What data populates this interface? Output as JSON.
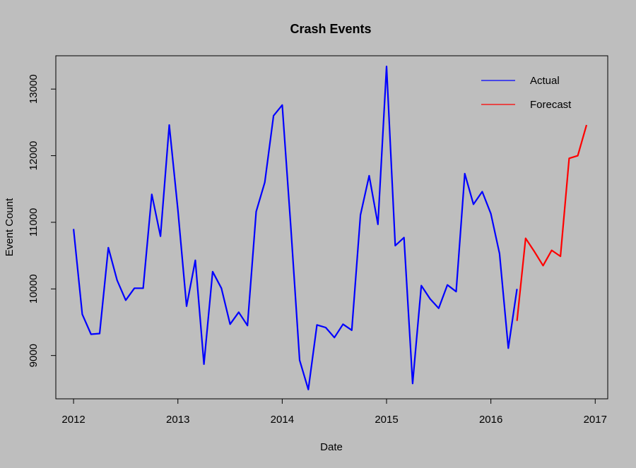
{
  "chart_data": {
    "type": "line",
    "title": "Crash Events",
    "xlabel": "Date",
    "ylabel": "Event Count",
    "xlim": [
      2011.83,
      2017.12
    ],
    "ylim": [
      8350,
      13500
    ],
    "x_ticks": [
      2012,
      2013,
      2014,
      2015,
      2016,
      2017
    ],
    "x_tick_labels": [
      "2012",
      "2013",
      "2014",
      "2015",
      "2016",
      "2017"
    ],
    "y_ticks": [
      9000,
      10000,
      11000,
      12000,
      13000
    ],
    "y_tick_labels": [
      "9000",
      "10000",
      "11000",
      "12000",
      "13000"
    ],
    "grid": false,
    "legend_position": "top-right",
    "series": [
      {
        "name": "Actual",
        "color": "#0000ff",
        "x": [
          2012.0,
          2012.083,
          2012.167,
          2012.25,
          2012.333,
          2012.417,
          2012.5,
          2012.583,
          2012.667,
          2012.75,
          2012.833,
          2012.917,
          2013.0,
          2013.083,
          2013.167,
          2013.25,
          2013.333,
          2013.417,
          2013.5,
          2013.583,
          2013.667,
          2013.75,
          2013.833,
          2013.917,
          2014.0,
          2014.083,
          2014.167,
          2014.25,
          2014.333,
          2014.417,
          2014.5,
          2014.583,
          2014.667,
          2014.75,
          2014.833,
          2014.917,
          2015.0,
          2015.083,
          2015.167,
          2015.25,
          2015.333,
          2015.417,
          2015.5,
          2015.583,
          2015.667,
          2015.75,
          2015.833,
          2015.917,
          2016.0,
          2016.083,
          2016.167,
          2016.25
        ],
        "y": [
          10900,
          9620,
          9320,
          9330,
          10620,
          10130,
          9830,
          10010,
          10010,
          11420,
          10790,
          12460,
          11190,
          9740,
          10430,
          8870,
          10260,
          10010,
          9470,
          9650,
          9450,
          11160,
          11600,
          12600,
          12760,
          10920,
          8930,
          8490,
          9460,
          9420,
          9270,
          9470,
          9380,
          11110,
          11700,
          10970,
          13340,
          10650,
          10770,
          8580,
          10050,
          9850,
          9710,
          10060,
          9960,
          11730,
          11270,
          11460,
          11130,
          10530,
          9110,
          10000
        ]
      },
      {
        "name": "Forecast",
        "color": "#ff0000",
        "x": [
          2016.25,
          2016.333,
          2016.417,
          2016.5,
          2016.583,
          2016.667,
          2016.75,
          2016.833,
          2016.917
        ],
        "y": [
          9520,
          10760,
          10560,
          10350,
          10580,
          10490,
          11960,
          12000,
          12460
        ]
      }
    ]
  }
}
